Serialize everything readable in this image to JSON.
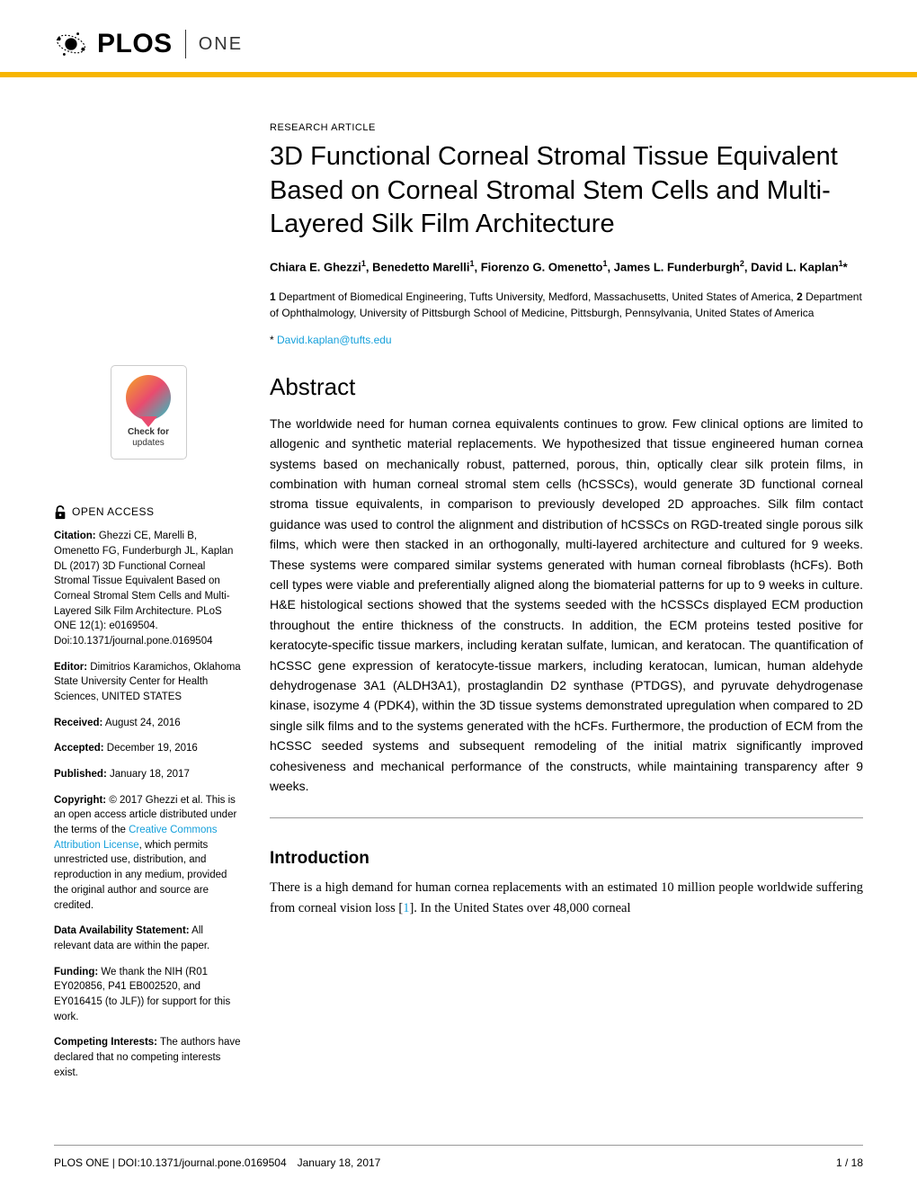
{
  "header": {
    "logo_main": "PLOS",
    "logo_sub": "ONE"
  },
  "article": {
    "type": "RESEARCH ARTICLE",
    "title": "3D Functional Corneal Stromal Tissue Equivalent Based on Corneal Stromal Stem Cells and Multi-Layered Silk Film Architecture",
    "authors_html": "Chiara E. Ghezzi<sup>1</sup>, Benedetto Marelli<sup>1</sup>, Fiorenzo G. Omenetto<sup>1</sup>, James L. Funderburgh<sup>2</sup>, David L. Kaplan<sup>1</sup>*",
    "affiliations_html": "<span class='affil-num'>1</span> Department of Biomedical Engineering, Tufts University, Medford, Massachusetts, United States of America, <span class='affil-num'>2</span> Department of Ophthalmology, University of Pittsburgh School of Medicine, Pittsburgh, Pennsylvania, United States of America",
    "corr_symbol": "*",
    "corr_email": "David.kaplan@tufts.edu"
  },
  "abstract": {
    "heading": "Abstract",
    "text": "The worldwide need for human cornea equivalents continues to grow. Few clinical options are limited to allogenic and synthetic material replacements. We hypothesized that tissue engineered human cornea systems based on mechanically robust, patterned, porous, thin, optically clear silk protein films, in combination with human corneal stromal stem cells (hCSSCs), would generate 3D functional corneal stroma tissue equivalents, in comparison to previously developed 2D approaches. Silk film contact guidance was used to control the alignment and distribution of hCSSCs on RGD-treated single porous silk films, which were then stacked in an orthogonally, multi-layered architecture and cultured for 9 weeks. These systems were compared similar systems generated with human corneal fibroblasts (hCFs). Both cell types were viable and preferentially aligned along the biomaterial patterns for up to 9 weeks in culture. H&E histological sections showed that the systems seeded with the hCSSCs displayed ECM production throughout the entire thickness of the constructs. In addition, the ECM proteins tested positive for keratocyte-specific tissue markers, including keratan sulfate, lumican, and keratocan. The quantification of hCSSC gene expression of keratocyte-tissue markers, including keratocan, lumican, human aldehyde dehydrogenase 3A1 (ALDH3A1), prostaglandin D2 synthase (PTDGS), and pyruvate dehydrogenase kinase, isozyme 4 (PDK4), within the 3D tissue systems demonstrated upregulation when compared to 2D single silk films and to the systems generated with the hCFs. Furthermore, the production of ECM from the hCSSC seeded systems and subsequent remodeling of the initial matrix significantly improved cohesiveness and mechanical performance of the constructs, while maintaining transparency after 9 weeks."
  },
  "introduction": {
    "heading": "Introduction",
    "text_before_ref": "There is a high demand for human cornea replacements with an estimated 10 million people worldwide suffering from corneal vision loss [",
    "ref": "1",
    "text_after_ref": "]. In the United States over 48,000 corneal"
  },
  "sidebar": {
    "badge": {
      "line1": "Check for",
      "line2": "updates"
    },
    "open_access": "OPEN ACCESS",
    "citation_label": "Citation:",
    "citation_text": " Ghezzi CE, Marelli B, Omenetto FG, Funderburgh JL, Kaplan DL (2017) 3D Functional Corneal Stromal Tissue Equivalent Based on Corneal Stromal Stem Cells and Multi-Layered Silk Film Architecture. PLoS ONE 12(1): e0169504. Doi:10.1371/journal.pone.0169504",
    "editor_label": "Editor:",
    "editor_text": " Dimitrios Karamichos, Oklahoma State University Center for Health Sciences, UNITED STATES",
    "received_label": "Received:",
    "received_text": " August 24, 2016",
    "accepted_label": "Accepted:",
    "accepted_text": " December 19, 2016",
    "published_label": "Published:",
    "published_text": " January 18, 2017",
    "copyright_label": "Copyright:",
    "copyright_before": " © 2017 Ghezzi et al. This is an open access article distributed under the terms of the ",
    "copyright_link": "Creative Commons Attribution License",
    "copyright_after": ", which permits unrestricted use, distribution, and reproduction in any medium, provided the original author and source are credited.",
    "data_label": "Data Availability Statement:",
    "data_text": " All relevant data are within the paper.",
    "funding_label": "Funding:",
    "funding_text": " We thank the NIH (R01 EY020856, P41 EB002520, and EY016415 (to JLF)) for support for this work.",
    "competing_label": "Competing Interests:",
    "competing_text": " The authors have declared that no competing interests exist."
  },
  "footer": {
    "left": "PLOS ONE | DOI:10.1371/journal.pone.0169504 January 18, 2017",
    "right": "1 / 18"
  },
  "colors": {
    "accent": "#f7b500",
    "link": "#16a0db"
  }
}
